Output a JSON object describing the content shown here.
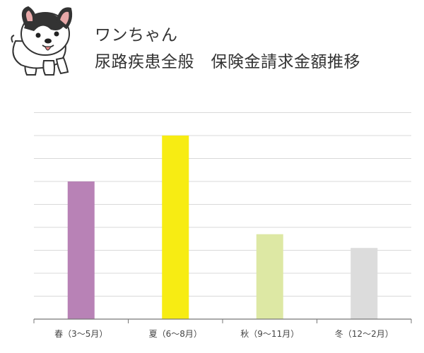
{
  "header": {
    "title": "ワンちゃん",
    "subtitle": "尿路疾患全般　保険金請求金額推移"
  },
  "colors": {
    "grid": "#d9d9d9",
    "axis": "#777777"
  },
  "chart_data": {
    "type": "bar",
    "title": "尿路疾患全般　保険金請求金額推移",
    "xlabel": "",
    "ylabel": "",
    "grid": true,
    "ylim": [
      0,
      9.2
    ],
    "gridlines": [
      0,
      1,
      2,
      3,
      4,
      5,
      6,
      7,
      8,
      9
    ],
    "categories": [
      "春（3〜5月）",
      "夏（6〜8月）",
      "秋（9〜11月）",
      "冬（12〜2月）"
    ],
    "values": [
      6.0,
      8.0,
      3.7,
      3.1
    ],
    "colors": [
      "#b882b6",
      "#f7ec13",
      "#dde8a4",
      "#dcdcdc"
    ]
  }
}
